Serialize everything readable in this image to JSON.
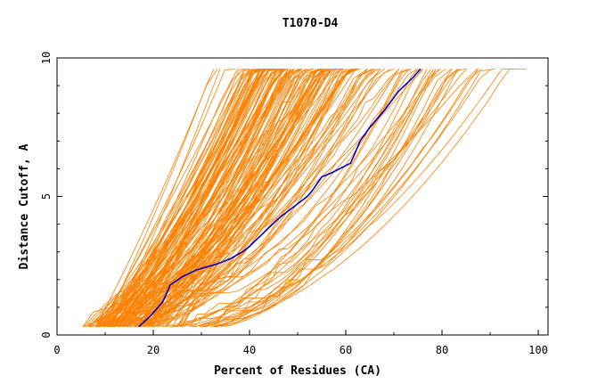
{
  "chart_data": {
    "type": "line",
    "title": "T1070-D4",
    "xlabel": "Percent of Residues (CA)",
    "ylabel": "Distance Cutoff, A",
    "xlim": [
      0,
      100
    ],
    "ylim": [
      0,
      10
    ],
    "x_ticks": [
      "0",
      "20",
      "40",
      "60",
      "80",
      "100"
    ],
    "y_ticks": [
      "0",
      "5",
      "10"
    ],
    "grid": false,
    "colors": {
      "models": "#ff8000",
      "highlight": "#0000c8",
      "frame": "#000000"
    },
    "highlight_series": {
      "x": [
        17,
        19.5,
        22,
        23.5,
        26,
        29,
        33,
        36,
        38.5,
        40,
        43,
        46,
        49,
        52,
        53,
        55,
        57,
        61,
        63,
        65,
        68,
        71,
        74,
        75.5
      ],
      "y": [
        0.3,
        0.7,
        1.2,
        1.8,
        2.1,
        2.35,
        2.55,
        2.75,
        3.0,
        3.2,
        3.7,
        4.2,
        4.6,
        5.0,
        5.2,
        5.7,
        5.85,
        6.2,
        7.0,
        7.5,
        8.1,
        8.8,
        9.3,
        9.6
      ]
    },
    "model_series_count": 170
  }
}
